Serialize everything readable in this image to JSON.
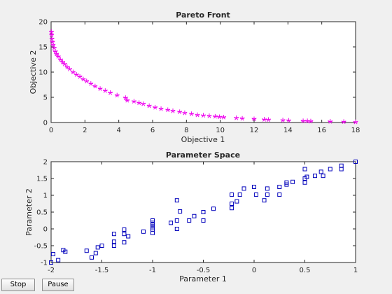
{
  "controls": {
    "stop_label": "Stop",
    "pause_label": "Pause"
  },
  "colors": {
    "pareto_marker": "#ee00ee",
    "param_marker": "#0000bb",
    "axes_bg": "#ffffff",
    "figure_bg": "#f0f0f0"
  },
  "chart_data": [
    {
      "type": "scatter",
      "title": "Pareto Front",
      "xlabel": "Objective 1",
      "ylabel": "Objective 2",
      "xlim": [
        0,
        18
      ],
      "ylim": [
        0,
        20
      ],
      "xticks": [
        0,
        2,
        4,
        6,
        8,
        10,
        12,
        14,
        16,
        18
      ],
      "yticks": [
        0,
        5,
        10,
        15,
        20
      ],
      "grid": false,
      "marker": "star",
      "points": [
        [
          0.02,
          18.0
        ],
        [
          0.03,
          17.4
        ],
        [
          0.05,
          16.6
        ],
        [
          0.08,
          16.0
        ],
        [
          0.12,
          15.4
        ],
        [
          0.18,
          14.8
        ],
        [
          0.25,
          14.1
        ],
        [
          0.32,
          13.6
        ],
        [
          0.42,
          13.1
        ],
        [
          0.55,
          12.5
        ],
        [
          0.68,
          12.0
        ],
        [
          0.8,
          11.6
        ],
        [
          0.95,
          11.0
        ],
        [
          1.1,
          10.6
        ],
        [
          1.3,
          10.0
        ],
        [
          1.5,
          9.5
        ],
        [
          1.7,
          9.1
        ],
        [
          1.9,
          8.6
        ],
        [
          2.1,
          8.2
        ],
        [
          2.35,
          7.7
        ],
        [
          2.6,
          7.2
        ],
        [
          2.9,
          6.7
        ],
        [
          3.2,
          6.3
        ],
        [
          3.5,
          5.9
        ],
        [
          3.9,
          5.4
        ],
        [
          4.4,
          4.9
        ],
        [
          4.5,
          4.4
        ],
        [
          4.9,
          4.2
        ],
        [
          5.2,
          3.9
        ],
        [
          5.45,
          3.7
        ],
        [
          5.8,
          3.3
        ],
        [
          6.15,
          3.0
        ],
        [
          6.5,
          2.7
        ],
        [
          6.9,
          2.5
        ],
        [
          7.2,
          2.3
        ],
        [
          7.6,
          2.1
        ],
        [
          7.9,
          1.9
        ],
        [
          8.3,
          1.7
        ],
        [
          8.65,
          1.5
        ],
        [
          9.0,
          1.4
        ],
        [
          9.35,
          1.3
        ],
        [
          9.7,
          1.2
        ],
        [
          9.95,
          1.1
        ],
        [
          10.2,
          1.05
        ],
        [
          10.95,
          0.9
        ],
        [
          11.3,
          0.8
        ],
        [
          12.0,
          0.7
        ],
        [
          12.6,
          0.6
        ],
        [
          12.85,
          0.55
        ],
        [
          13.7,
          0.45
        ],
        [
          14.05,
          0.4
        ],
        [
          14.9,
          0.3
        ],
        [
          15.15,
          0.3
        ],
        [
          15.35,
          0.25
        ],
        [
          16.5,
          0.2
        ],
        [
          17.3,
          0.15
        ],
        [
          18.0,
          0.1
        ]
      ]
    },
    {
      "type": "scatter",
      "title": "Parameter Space",
      "xlabel": "Parameter 1",
      "ylabel": "Parameter 2",
      "xlim": [
        -2,
        1
      ],
      "ylim": [
        -1,
        2
      ],
      "xticks": [
        -2,
        -1.5,
        -1,
        -0.5,
        0,
        0.5,
        1
      ],
      "yticks": [
        -1,
        -0.5,
        0,
        0.5,
        1,
        1.5,
        2
      ],
      "grid": false,
      "marker": "square",
      "points": [
        [
          -2.0,
          -1.0
        ],
        [
          -1.98,
          -0.75
        ],
        [
          -1.93,
          -0.93
        ],
        [
          -1.88,
          -0.63
        ],
        [
          -1.86,
          -0.68
        ],
        [
          -1.65,
          -0.65
        ],
        [
          -1.6,
          -0.85
        ],
        [
          -1.56,
          -0.72
        ],
        [
          -1.54,
          -0.55
        ],
        [
          -1.5,
          -0.5
        ],
        [
          -1.38,
          -0.5
        ],
        [
          -1.38,
          -0.38
        ],
        [
          -1.38,
          -0.15
        ],
        [
          -1.28,
          -0.4
        ],
        [
          -1.28,
          -0.15
        ],
        [
          -1.28,
          -0.02
        ],
        [
          -1.24,
          -0.22
        ],
        [
          -1.09,
          -0.08
        ],
        [
          -1.0,
          -0.12
        ],
        [
          -1.0,
          -0.02
        ],
        [
          -1.0,
          0.05
        ],
        [
          -1.0,
          0.12
        ],
        [
          -1.0,
          0.18
        ],
        [
          -1.0,
          0.25
        ],
        [
          -0.82,
          0.18
        ],
        [
          -0.76,
          0.0
        ],
        [
          -0.76,
          0.25
        ],
        [
          -0.76,
          0.85
        ],
        [
          -0.73,
          0.52
        ],
        [
          -0.64,
          0.25
        ],
        [
          -0.59,
          0.38
        ],
        [
          -0.5,
          0.25
        ],
        [
          -0.5,
          0.5
        ],
        [
          -0.4,
          0.6
        ],
        [
          -0.22,
          0.62
        ],
        [
          -0.22,
          0.75
        ],
        [
          -0.22,
          1.02
        ],
        [
          -0.17,
          0.82
        ],
        [
          -0.14,
          1.02
        ],
        [
          -0.1,
          1.2
        ],
        [
          0.0,
          1.25
        ],
        [
          0.02,
          1.02
        ],
        [
          0.1,
          0.85
        ],
        [
          0.13,
          1.02
        ],
        [
          0.13,
          1.2
        ],
        [
          0.25,
          1.25
        ],
        [
          0.25,
          1.02
        ],
        [
          0.32,
          1.32
        ],
        [
          0.32,
          1.38
        ],
        [
          0.38,
          1.4
        ],
        [
          0.5,
          1.38
        ],
        [
          0.5,
          1.5
        ],
        [
          0.5,
          1.78
        ],
        [
          0.52,
          1.55
        ],
        [
          0.6,
          1.58
        ],
        [
          0.66,
          1.7
        ],
        [
          0.68,
          1.58
        ],
        [
          0.75,
          1.78
        ],
        [
          0.86,
          1.88
        ],
        [
          0.86,
          1.78
        ],
        [
          1.0,
          2.0
        ]
      ]
    }
  ]
}
